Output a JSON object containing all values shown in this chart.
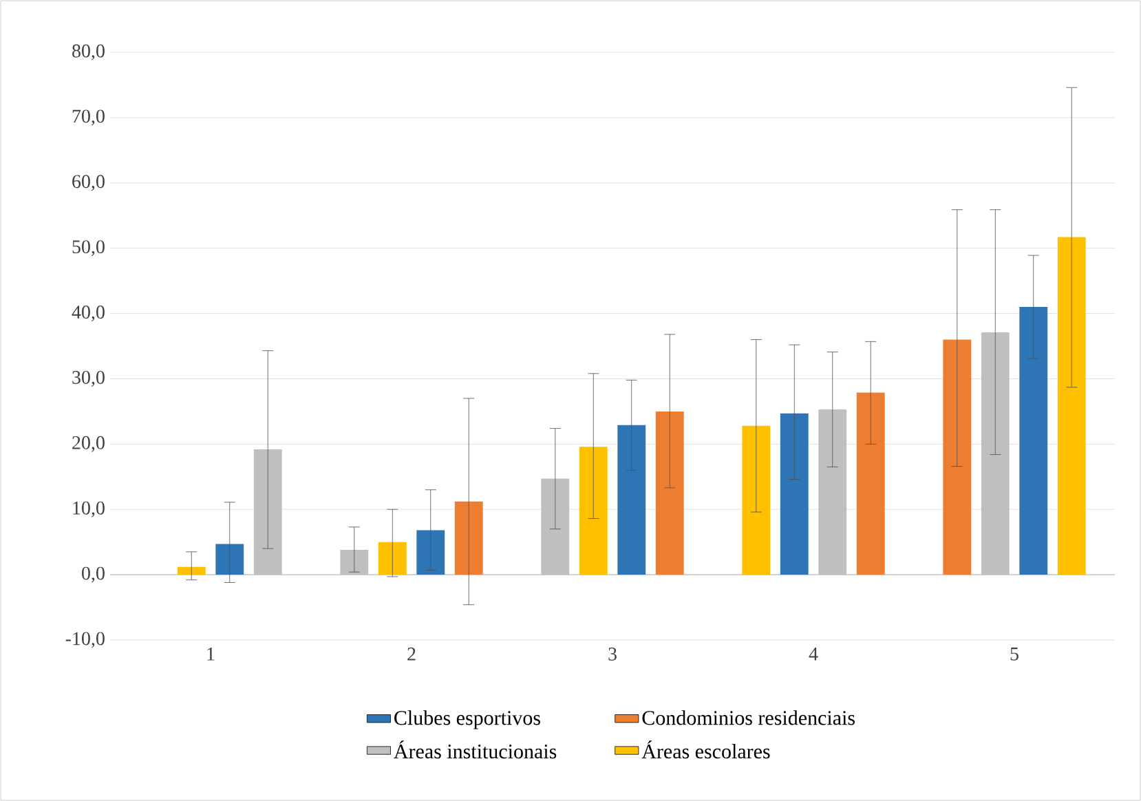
{
  "chart_data": {
    "type": "bar",
    "categories": [
      "1",
      "2",
      "3",
      "4",
      "5"
    ],
    "series": [
      {
        "name": "Clubes esportivos",
        "color": "#2e75b6",
        "values": [
          4.7,
          6.8,
          22.9,
          24.7,
          41.0
        ],
        "errors": [
          [
            -1.2,
            11.1
          ],
          [
            0.7,
            13.0
          ],
          [
            16.0,
            29.8
          ],
          [
            14.6,
            35.2
          ],
          [
            33.1,
            48.9
          ]
        ]
      },
      {
        "name": "Condominios residenciais",
        "color": "#ed7d31",
        "values": [
          0,
          11.2,
          25.0,
          27.9,
          36.0
        ],
        "errors": [
          null,
          [
            -4.6,
            27.0
          ],
          [
            13.3,
            36.8
          ],
          [
            20.0,
            35.7
          ],
          [
            16.6,
            55.9
          ]
        ]
      },
      {
        "name": "Áreas institucionais",
        "color": "#bfbfbf",
        "values": [
          19.2,
          3.8,
          14.7,
          25.3,
          37.1
        ],
        "errors": [
          [
            4.0,
            34.3
          ],
          [
            0.4,
            7.3
          ],
          [
            7.0,
            22.4
          ],
          [
            16.5,
            34.1
          ],
          [
            18.4,
            55.9
          ]
        ]
      },
      {
        "name": "Áreas escolares",
        "color": "#ffc000",
        "values": [
          1.2,
          5.0,
          19.6,
          22.8,
          51.7
        ],
        "errors": [
          [
            -0.8,
            3.5
          ],
          [
            -0.3,
            10.0
          ],
          [
            8.6,
            30.8
          ],
          [
            9.6,
            36.0
          ],
          [
            28.7,
            74.6
          ]
        ]
      }
    ],
    "ylim": [
      -10,
      80
    ],
    "yticks": [
      {
        "value": -10,
        "label": "-10,0"
      },
      {
        "value": 0,
        "label": "0,0"
      },
      {
        "value": 10,
        "label": "10,0"
      },
      {
        "value": 20,
        "label": "20,0"
      },
      {
        "value": 30,
        "label": "30,0"
      },
      {
        "value": 40,
        "label": "40,0"
      },
      {
        "value": 50,
        "label": "50,0"
      },
      {
        "value": 60,
        "label": "60,0"
      },
      {
        "value": 70,
        "label": "70,0"
      },
      {
        "value": 80,
        "label": "80,0"
      }
    ],
    "grid": "y",
    "legend": "bottom"
  }
}
